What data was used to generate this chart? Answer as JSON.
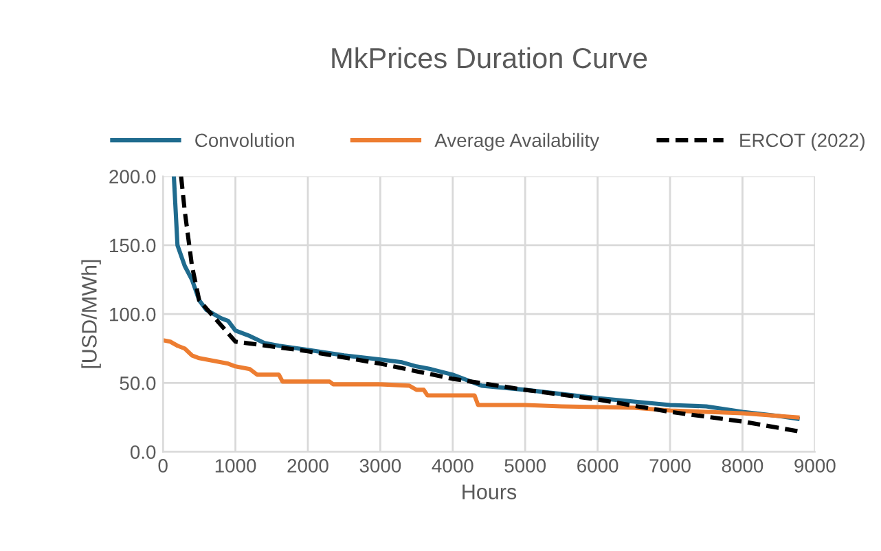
{
  "chart_data": {
    "type": "line",
    "title": "MkPrices Duration Curve",
    "xlabel": "Hours",
    "ylabel": "[USD/MWh]",
    "xlim": [
      0,
      9000
    ],
    "xticks": [
      0,
      1000,
      2000,
      3000,
      4000,
      5000,
      6000,
      7000,
      8000,
      9000
    ],
    "ylim": [
      0,
      200
    ],
    "yticks": [
      {
        "value": 0,
        "label": "0.0"
      },
      {
        "value": 50,
        "label": "50.0"
      },
      {
        "value": 100,
        "label": "100.0"
      },
      {
        "value": 150,
        "label": "150.0"
      },
      {
        "value": 200,
        "label": "200.0"
      }
    ],
    "grid": true,
    "legend": "top",
    "marker": "none",
    "series": [
      {
        "name": "Convolution",
        "color": "#1f6b8e",
        "line_style": "solid",
        "x": [
          150,
          200,
          300,
          400,
          500,
          600,
          700,
          800,
          900,
          1000,
          1200,
          1400,
          1600,
          2000,
          2500,
          3000,
          3300,
          3500,
          3700,
          4000,
          4200,
          4400,
          5000,
          6000,
          7000,
          7500,
          8000,
          8500,
          8760
        ],
        "values": [
          200,
          150,
          135,
          125,
          110,
          103,
          100,
          97,
          95,
          88,
          84,
          79,
          77,
          74,
          70,
          67,
          65,
          62,
          60,
          56,
          52,
          48,
          45,
          39,
          34,
          33,
          29,
          26,
          24
        ]
      },
      {
        "name": "Average Availability",
        "color": "#ed7d31",
        "line_style": "solid",
        "x": [
          0,
          100,
          200,
          300,
          400,
          500,
          700,
          900,
          1000,
          1200,
          1300,
          1600,
          1650,
          2300,
          2350,
          3000,
          3400,
          3500,
          3600,
          3650,
          4300,
          4350,
          5000,
          5500,
          6500,
          7000,
          7500,
          8000,
          8760
        ],
        "values": [
          81,
          80,
          77,
          75,
          70,
          68,
          66,
          64,
          62,
          60,
          56,
          56,
          51,
          51,
          49,
          49,
          48,
          45,
          45,
          41,
          41,
          34,
          34,
          33,
          32,
          30,
          29,
          28,
          25
        ]
      },
      {
        "name": "ERCOT (2022)",
        "color": "#000000",
        "line_style": "dashed",
        "x": [
          250,
          300,
          400,
          500,
          700,
          1000,
          2000,
          3000,
          4000,
          5000,
          6000,
          7000,
          8000,
          8760
        ],
        "values": [
          200,
          175,
          135,
          110,
          98,
          80,
          73,
          64,
          53,
          45,
          38,
          29,
          22,
          15
        ]
      }
    ]
  }
}
